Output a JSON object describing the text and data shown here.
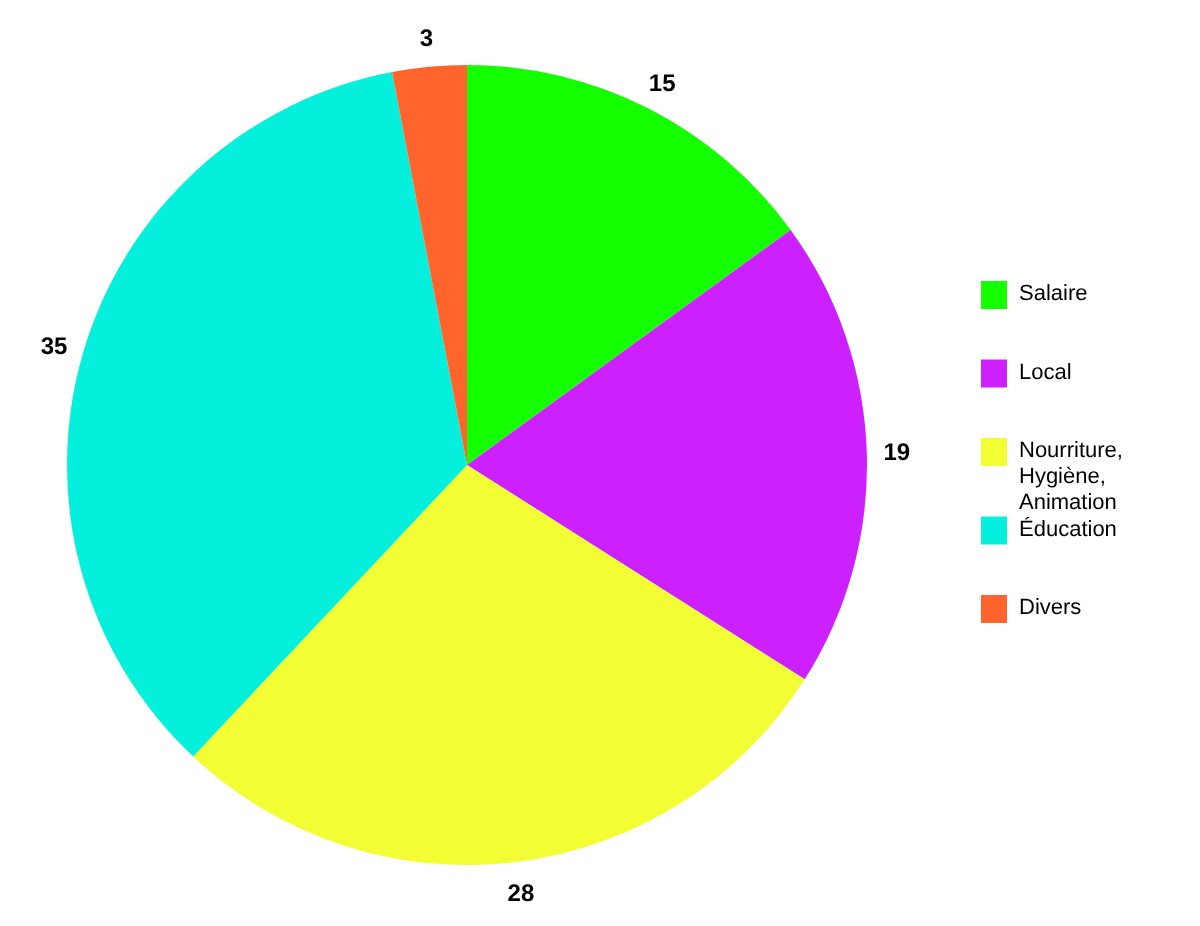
{
  "chart_data": {
    "type": "pie",
    "categories": [
      "Salaire",
      "Local",
      "Nourriture, Hygiène, Animation",
      "Éducation",
      "Divers"
    ],
    "values": [
      15,
      19,
      28,
      35,
      3
    ],
    "colors": [
      "#14ff00",
      "#cc20ff",
      "#f2fd33",
      "#05f0dc",
      "#ff642c"
    ],
    "data_labels": true,
    "legend": "right"
  }
}
